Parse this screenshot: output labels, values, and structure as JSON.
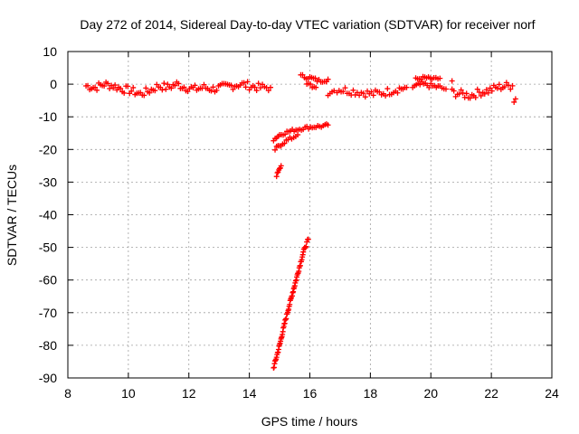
{
  "chart_data": {
    "type": "scatter",
    "title": "Day 272 of 2014, Sidereal Day-to-day VTEC variation (SDTVAR) for receiver norf",
    "xlabel": "GPS time / hours",
    "ylabel": "SDTVAR / TECUs",
    "xlim": [
      8,
      24
    ],
    "ylim": [
      -90,
      10
    ],
    "xticks": [
      8,
      10,
      12,
      14,
      16,
      18,
      20,
      22,
      24
    ],
    "yticks": [
      10,
      0,
      -10,
      -20,
      -30,
      -40,
      -50,
      -60,
      -70,
      -80,
      -90
    ],
    "grid": true,
    "marker": "+",
    "series": [
      {
        "color": "#ff0000",
        "segments": [
          {
            "kind": "band",
            "points": [
              [
                8.6,
                -0.5
              ],
              [
                8.9,
                -1
              ],
              [
                9.2,
                0
              ],
              [
                9.5,
                -0.5
              ],
              [
                9.8,
                -1.5
              ],
              [
                10.1,
                -2
              ],
              [
                10.4,
                -3
              ],
              [
                10.7,
                -2
              ],
              [
                11.0,
                -0.5
              ],
              [
                11.3,
                -1
              ],
              [
                11.6,
                0
              ],
              [
                11.9,
                -1
              ],
              [
                12.2,
                -1.5
              ],
              [
                12.5,
                -1
              ],
              [
                12.8,
                -1.5
              ],
              [
                13.1,
                -1
              ],
              [
                13.4,
                -0.5
              ],
              [
                13.7,
                0
              ],
              [
                14.0,
                -0.5
              ],
              [
                14.3,
                -1
              ],
              [
                14.7,
                -1
              ]
            ],
            "spread": 2.5
          },
          {
            "kind": "band",
            "points": [
              [
                15.7,
                2.5
              ],
              [
                16.0,
                2
              ],
              [
                16.3,
                1
              ],
              [
                16.6,
                1.5
              ]
            ],
            "spread": 1.2
          },
          {
            "kind": "band",
            "points": [
              [
                15.9,
                0
              ],
              [
                16.2,
                -1
              ]
            ],
            "spread": 1.2
          },
          {
            "kind": "band",
            "points": [
              [
                16.6,
                -3
              ],
              [
                16.8,
                -2
              ]
            ],
            "spread": 1.0
          },
          {
            "kind": "band",
            "points": [
              [
                16.9,
                -1.5
              ],
              [
                17.3,
                -2
              ],
              [
                17.7,
                -2.5
              ],
              [
                18.1,
                -3
              ],
              [
                18.5,
                -2.5
              ],
              [
                18.9,
                -1.5
              ],
              [
                19.2,
                -1
              ]
            ],
            "spread": 2.5
          },
          {
            "kind": "band",
            "points": [
              [
                19.5,
                1.5
              ],
              [
                19.8,
                2
              ],
              [
                20.1,
                1.5
              ],
              [
                20.3,
                1.8
              ]
            ],
            "spread": 1.0
          },
          {
            "kind": "band",
            "points": [
              [
                19.4,
                -1
              ],
              [
                19.7,
                0
              ],
              [
                20.0,
                -0.5
              ],
              [
                20.3,
                -1
              ],
              [
                20.5,
                -1.5
              ]
            ],
            "spread": 1.5
          },
          {
            "kind": "band",
            "points": [
              [
                20.7,
                -2.5
              ],
              [
                21.0,
                -3
              ],
              [
                21.3,
                -3.5
              ],
              [
                21.6,
                -2.5
              ],
              [
                21.9,
                -2
              ],
              [
                22.2,
                -1
              ],
              [
                22.5,
                -0.5
              ],
              [
                22.7,
                -0.5
              ]
            ],
            "spread": 2.5
          },
          {
            "kind": "band",
            "points": [
              [
                14.8,
                -17
              ],
              [
                15.0,
                -15.5
              ],
              [
                15.3,
                -14.5
              ],
              [
                15.6,
                -13.8
              ],
              [
                15.9,
                -13.3
              ],
              [
                16.2,
                -13
              ],
              [
                16.5,
                -12.8
              ],
              [
                16.6,
                -12.5
              ]
            ],
            "spread": 1.0
          },
          {
            "kind": "band",
            "points": [
              [
                14.85,
                -20
              ],
              [
                15.1,
                -18
              ],
              [
                15.4,
                -16.5
              ],
              [
                15.6,
                -15.5
              ]
            ],
            "spread": 1.2
          },
          {
            "kind": "band",
            "points": [
              [
                14.9,
                -28
              ],
              [
                15.0,
                -26
              ],
              [
                15.05,
                -25
              ]
            ],
            "spread": 0.8
          },
          {
            "kind": "band",
            "points": [
              [
                14.8,
                -87
              ],
              [
                15.0,
                -80
              ],
              [
                15.2,
                -72
              ],
              [
                15.4,
                -65
              ],
              [
                15.6,
                -58
              ],
              [
                15.8,
                -51
              ],
              [
                15.95,
                -47.5
              ]
            ],
            "spread": 1.0
          }
        ],
        "isolated": [
          [
            20.7,
            1
          ],
          [
            22.8,
            -4.5
          ],
          [
            22.75,
            -5.5
          ],
          [
            16.55,
            0.8
          ]
        ]
      }
    ]
  }
}
